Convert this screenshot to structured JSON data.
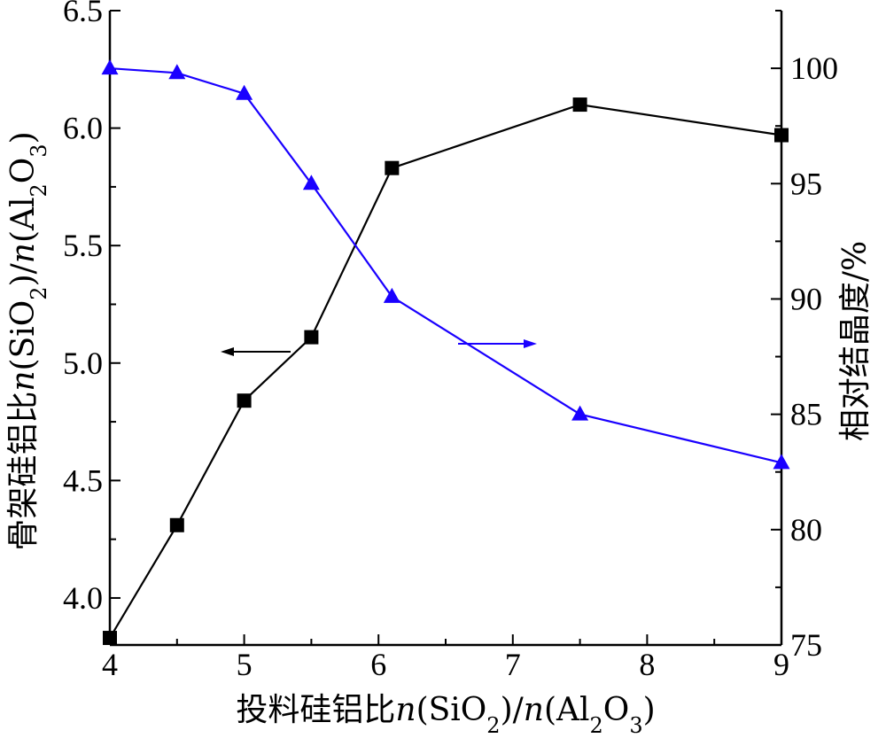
{
  "chart_data": {
    "type": "line",
    "xlabel_parts": [
      "投料硅铝比",
      "n",
      "(SiO",
      "2",
      ")/",
      "n",
      "(Al",
      "2",
      "O",
      "3",
      ")"
    ],
    "ylabel_left_parts": [
      "骨架硅铝比",
      "n",
      "(SiO",
      "2",
      ")/",
      "n",
      "(Al",
      "2",
      "O",
      "3",
      ")"
    ],
    "ylabel_right": "相对结晶度/%",
    "xlim": [
      4,
      9
    ],
    "ylim_left": [
      3.8,
      6.5
    ],
    "ylim_right": [
      75,
      102.5
    ],
    "x_ticks": [
      "4",
      "5",
      "6",
      "7",
      "8",
      "9"
    ],
    "y_left_ticks": [
      "4.0",
      "4.5",
      "5.0",
      "5.5",
      "6.0",
      "6.5"
    ],
    "y_right_ticks": [
      "75",
      "80",
      "85",
      "90",
      "95",
      "100"
    ],
    "series": [
      {
        "axis": "left",
        "color": "#000000",
        "marker": "square",
        "x": [
          4,
          4.5,
          5,
          5.5,
          6.1,
          7.5,
          9
        ],
        "y": [
          3.83,
          4.31,
          4.84,
          5.11,
          5.83,
          6.1,
          5.97
        ]
      },
      {
        "axis": "right",
        "color": "#1a00ff",
        "marker": "triangle",
        "x": [
          4,
          4.5,
          5,
          5.5,
          6.1,
          7.5,
          9
        ],
        "y": [
          100,
          99.8,
          98.9,
          95,
          90.1,
          85,
          82.9
        ]
      }
    ],
    "grid": false
  }
}
